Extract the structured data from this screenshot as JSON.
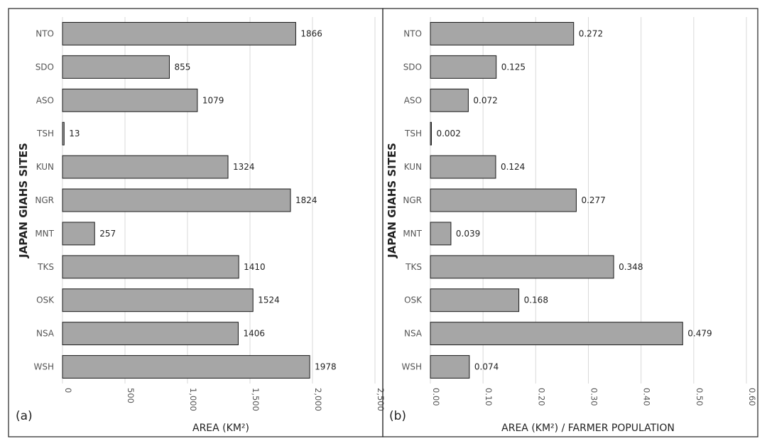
{
  "colors": {
    "bar_fill": "#a6a6a6",
    "bar_stroke": "#1a1a1a",
    "grid": "#d9d9d9",
    "border": "#222222"
  },
  "chart_data": [
    {
      "type": "bar",
      "orientation": "horizontal",
      "panel_label": "(a)",
      "xlabel": "AREA (KM²)",
      "ylabel": "JAPAN GIAHS SITES",
      "xlim": [
        0,
        2500
      ],
      "ticks": [
        0,
        500,
        1000,
        1500,
        2000,
        2500
      ],
      "tick_labels": [
        "0",
        "500",
        "1,000",
        "1,500",
        "2,000",
        "2,500"
      ],
      "grid": true,
      "categories": [
        "NTO",
        "SDO",
        "ASO",
        "TSH",
        "KUN",
        "NGR",
        "MNT",
        "TKS",
        "OSK",
        "NSA",
        "WSH"
      ],
      "values": [
        1866,
        855,
        1079,
        13,
        1324,
        1824,
        257,
        1410,
        1524,
        1406,
        1978
      ],
      "value_labels": [
        "1866",
        "855",
        "1079",
        "13",
        "1324",
        "1824",
        "257",
        "1410",
        "1524",
        "1406",
        "1978"
      ]
    },
    {
      "type": "bar",
      "orientation": "horizontal",
      "panel_label": "(b)",
      "xlabel": "AREA (KM²) / FARMER POPULATION",
      "ylabel": "JAPAN GIAHS SITES",
      "xlim": [
        0,
        0.6
      ],
      "ticks": [
        0,
        0.1,
        0.2,
        0.3,
        0.4,
        0.5,
        0.6
      ],
      "tick_labels": [
        "0.00",
        "0.10",
        "0.20",
        "0.30",
        "0.40",
        "0.50",
        "0.60"
      ],
      "grid": true,
      "categories": [
        "NTO",
        "SDO",
        "ASO",
        "TSH",
        "KUN",
        "NGR",
        "MNT",
        "TKS",
        "OSK",
        "NSA",
        "WSH"
      ],
      "values": [
        0.272,
        0.125,
        0.072,
        0.002,
        0.124,
        0.277,
        0.039,
        0.348,
        0.168,
        0.479,
        0.074
      ],
      "value_labels": [
        "0.272",
        "0.125",
        "0.072",
        "0.002",
        "0.124",
        "0.277",
        "0.039",
        "0.348",
        "0.168",
        "0.479",
        "0.074"
      ]
    }
  ]
}
